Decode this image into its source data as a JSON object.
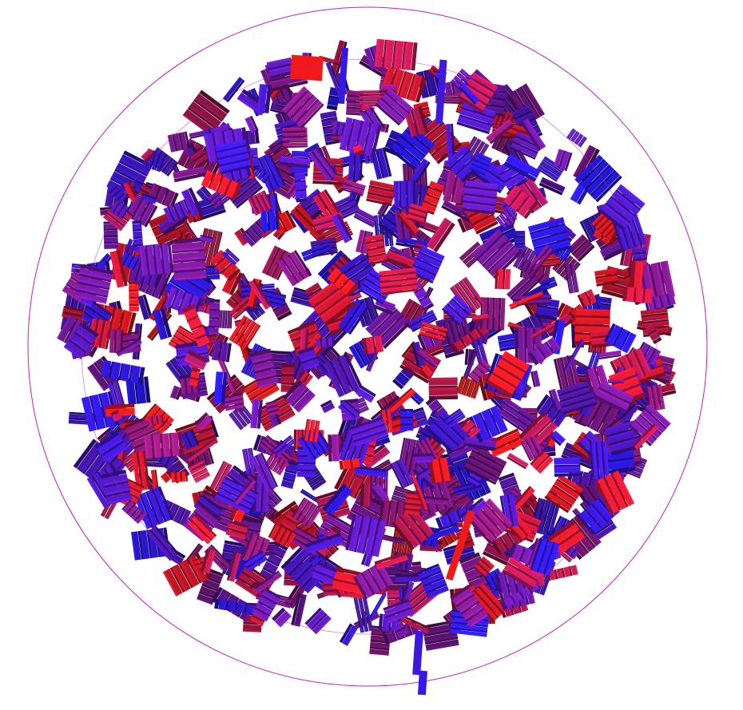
{
  "scene": {
    "background_color": "#ffffff",
    "boundary_circle_color": "#c020c0",
    "inner_circle_color": "#a020a0",
    "particle_color_endpoints": {
      "red": "#ff1a1a",
      "blue": "#2a1aff"
    },
    "particle_shape": "platelet",
    "particle_count_approx": 900,
    "rendering": "3d-shaded"
  }
}
